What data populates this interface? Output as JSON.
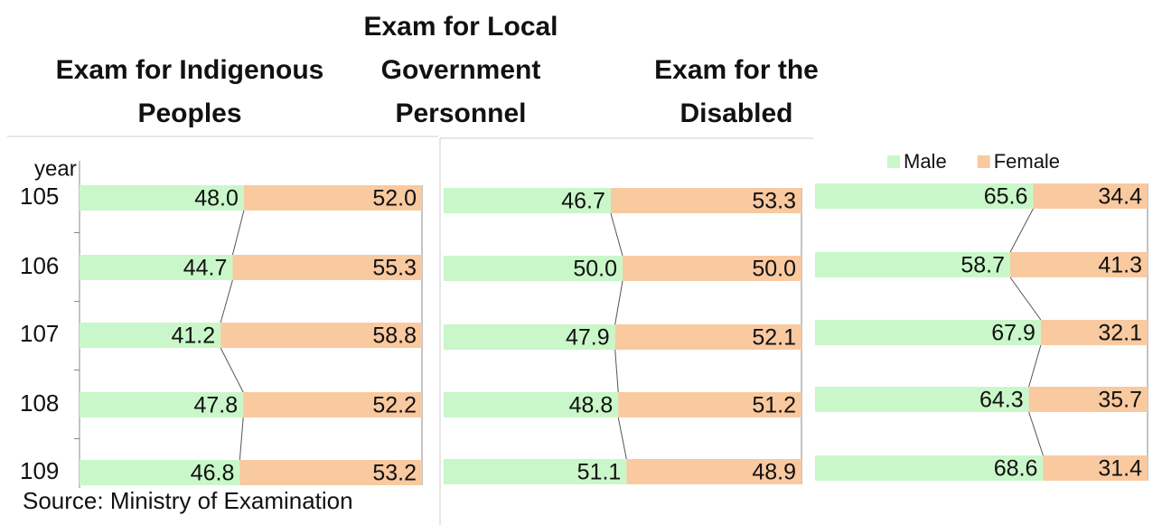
{
  "source": "Source: Ministry of Examination",
  "chart_data": [
    {
      "type": "bar",
      "title": "Exam for Indigenous Peoples",
      "y_label": "year",
      "categories": [
        "105",
        "106",
        "107",
        "108",
        "109"
      ],
      "xlim": [
        0,
        100
      ],
      "series": [
        {
          "color": "#c9f7c9",
          "values": [
            48.0,
            44.7,
            41.2,
            47.8,
            46.8
          ],
          "value_labels": [
            "48.0",
            "44.7",
            "41.2",
            "47.8",
            "46.8"
          ]
        },
        {
          "color": "#f9c9a0",
          "values": [
            52.0,
            55.3,
            58.8,
            52.2,
            53.2
          ],
          "value_labels": [
            "52.0",
            "55.3",
            "58.8",
            "52.2",
            "53.2"
          ]
        }
      ]
    },
    {
      "type": "bar",
      "title": "Exam for Local Government Personnel",
      "xlim": [
        0,
        100
      ],
      "series": [
        {
          "color": "#c9f7c9",
          "values": [
            46.7,
            50.0,
            47.9,
            48.8,
            51.1
          ],
          "value_labels": [
            "46.7",
            "50.0",
            "47.9",
            "48.8",
            "51.1"
          ]
        },
        {
          "color": "#f9c9a0",
          "values": [
            53.3,
            50.0,
            52.1,
            51.2,
            48.9
          ],
          "value_labels": [
            "53.3",
            "50.0",
            "52.1",
            "51.2",
            "48.9"
          ]
        }
      ]
    },
    {
      "type": "bar",
      "title": "Exam for the Disabled",
      "xlim": [
        0,
        100
      ],
      "legend": "top",
      "series": [
        {
          "name": "Male",
          "color": "#c9f7c9",
          "values": [
            65.6,
            58.7,
            67.9,
            64.3,
            68.6
          ],
          "value_labels": [
            "65.6",
            "58.7",
            "67.9",
            "64.3",
            "68.6"
          ]
        },
        {
          "name": "Female",
          "color": "#f9c9a0",
          "values": [
            34.4,
            41.3,
            32.1,
            35.7,
            31.4
          ],
          "value_labels": [
            "34.4",
            "41.3",
            "32.1",
            "35.7",
            "31.4"
          ]
        }
      ]
    }
  ]
}
